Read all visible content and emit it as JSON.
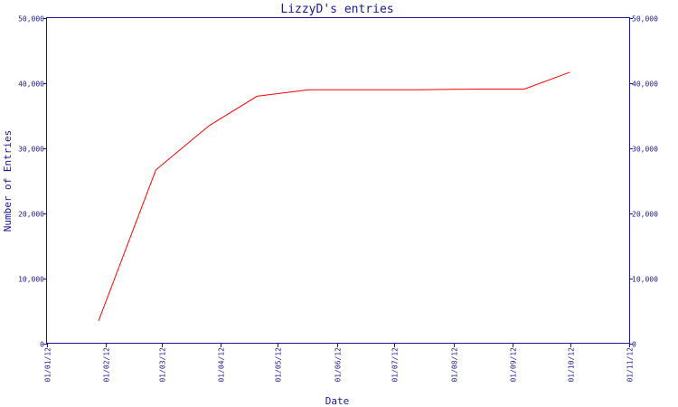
{
  "chart_data": {
    "type": "line",
    "title": "LizzyD's entries",
    "xlabel": "Date",
    "ylabel": "Number of Entries",
    "xlim": [
      "2012-01-01",
      "2012-11-01"
    ],
    "ylim": [
      0,
      50000
    ],
    "y_ticks": [
      0,
      10000,
      20000,
      30000,
      40000,
      50000
    ],
    "y_tick_labels": [
      "0",
      "10,000",
      "20,000",
      "30,000",
      "40,000",
      "50,000"
    ],
    "x_ticks": [
      "2012-01-01",
      "2012-02-01",
      "2012-03-01",
      "2012-04-01",
      "2012-05-01",
      "2012-06-01",
      "2012-07-01",
      "2012-08-01",
      "2012-09-01",
      "2012-10-01",
      "2012-11-01"
    ],
    "x_tick_labels": [
      "01/01/12",
      "01/02/12",
      "01/03/12",
      "01/04/12",
      "01/05/12",
      "01/06/12",
      "01/07/12",
      "01/08/12",
      "01/09/12",
      "01/10/12",
      "01/11/12"
    ],
    "grid": false,
    "right_axis": true,
    "series": [
      {
        "color": "#ff0000",
        "points": [
          {
            "x": "2012-01-28",
            "y": 3500
          },
          {
            "x": "2012-02-27",
            "y": 26700
          },
          {
            "x": "2012-03-26",
            "y": 33500
          },
          {
            "x": "2012-04-20",
            "y": 38000
          },
          {
            "x": "2012-05-17",
            "y": 39000
          },
          {
            "x": "2012-06-15",
            "y": 39000
          },
          {
            "x": "2012-07-14",
            "y": 39000
          },
          {
            "x": "2012-08-12",
            "y": 39100
          },
          {
            "x": "2012-09-07",
            "y": 39100
          },
          {
            "x": "2012-10-01",
            "y": 41700
          }
        ]
      }
    ],
    "axis_color": "#1a1a8c"
  }
}
